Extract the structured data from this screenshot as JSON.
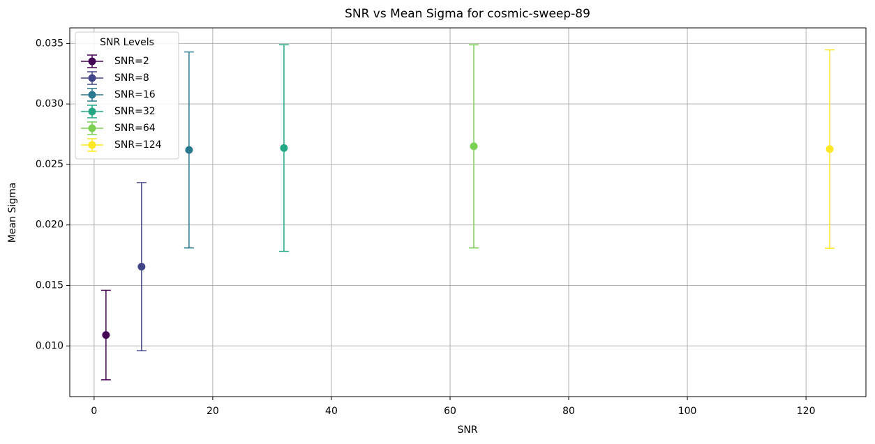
{
  "chart_data": {
    "type": "errorbar",
    "title": "SNR vs Mean Sigma for cosmic-sweep-89",
    "x_label": "SNR",
    "y_label": "Mean Sigma",
    "legend_title": "SNR Levels",
    "legend": "upper left",
    "grid": true,
    "xlim": [
      -4.1,
      130.1
    ],
    "xticks": [
      0,
      20,
      40,
      60,
      80,
      100,
      120
    ],
    "ylim": [
      0.00581,
      0.03629
    ],
    "yticks": [
      {
        "value": 0.01,
        "label": "0.010"
      },
      0.015,
      {
        "value": 0.02,
        "label": "0.020"
      },
      0.025,
      {
        "value": 0.03,
        "label": "0.030"
      },
      0.035
    ],
    "series": [
      {
        "name": "SNR=2",
        "color": "#440154",
        "x": [
          2
        ],
        "values": [
          0.0109
        ],
        "errors": [
          0.0037
        ]
      },
      {
        "name": "SNR=8",
        "color": "#414487",
        "x": [
          8
        ],
        "values": [
          0.01655
        ],
        "errors": [
          0.00695
        ]
      },
      {
        "name": "SNR=16",
        "color": "#2a788e",
        "x": [
          16
        ],
        "values": [
          0.0262
        ],
        "errors": [
          0.0081
        ]
      },
      {
        "name": "SNR=32",
        "color": "#22a884",
        "x": [
          32
        ],
        "values": [
          0.02636
        ],
        "errors": [
          0.00854
        ]
      },
      {
        "name": "SNR=64",
        "color": "#7ad151",
        "x": [
          64
        ],
        "values": [
          0.0265
        ],
        "errors": [
          0.0084
        ]
      },
      {
        "name": "SNR=124",
        "color": "#fde725",
        "x": [
          124
        ],
        "values": [
          0.02627
        ],
        "errors": [
          0.0082
        ]
      }
    ]
  }
}
